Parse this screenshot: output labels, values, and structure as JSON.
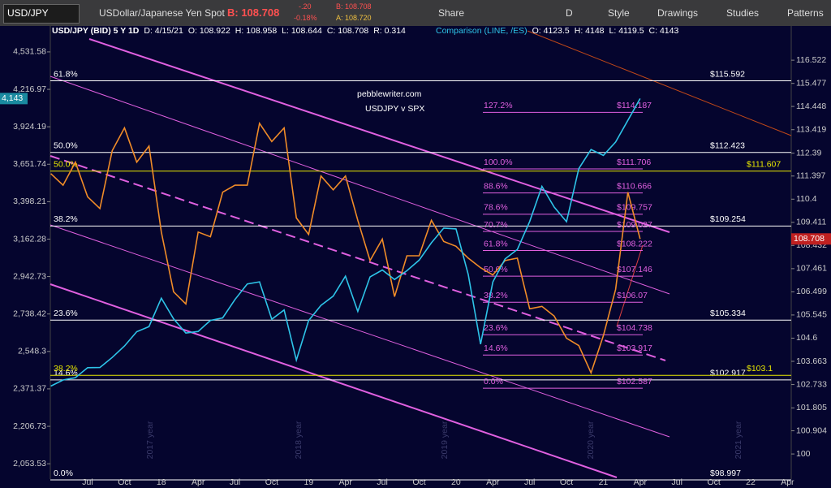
{
  "toolbar": {
    "symbol": "USD/JPY",
    "description": "USDollar/Japanese Yen Spot",
    "bid": "B: 108.708",
    "change": "-.20",
    "change_pct": "-0.18%",
    "bid_small": "B: 108.708",
    "ask_small": "A: 108.720",
    "buttons": [
      "Share",
      "D",
      "Style",
      "Drawings",
      "Studies",
      "Patterns"
    ]
  },
  "chart_data": {
    "type": "line",
    "info": [
      "USD/JPY (BID) 5 Y 1D",
      "D: 4/15/21",
      "O: 108.922",
      "H: 108.958",
      "L: 108.644",
      "C: 108.708",
      "R: 0.314"
    ],
    "comparison_info": [
      "Comparison (LINE, /ES)",
      "O: 4123.5",
      "H: 4148",
      "L: 4119.5",
      "C: 4143"
    ],
    "annotations": [
      "pebblewriter.com",
      "USDJPY v SPX"
    ],
    "watermarks": [
      "2017 year",
      "2018 year",
      "2019 year",
      "2020 year",
      "2021 year"
    ],
    "categories": [
      null,
      null,
      null,
      "Jul",
      null,
      null,
      "Oct",
      null,
      null,
      "18",
      null,
      null,
      "Apr",
      null,
      null,
      "Jul",
      null,
      null,
      "Oct",
      null,
      null,
      "19",
      null,
      null,
      "Apr",
      null,
      null,
      "Jul",
      null,
      null,
      "Oct",
      null,
      null,
      "20",
      null,
      null,
      "Apr",
      null,
      null,
      "Jul",
      null,
      null,
      "Oct",
      null,
      null,
      "21",
      null,
      null,
      "Apr",
      null,
      null,
      "Jul",
      null,
      null,
      "Oct",
      null,
      null,
      "22",
      null,
      null,
      "Apr"
    ],
    "series": [
      {
        "name": "USD/JPY",
        "axis": "y2",
        "color": "#f08c28",
        "last_value_label": "108.708",
        "values": [
          111.5,
          111,
          112,
          110.5,
          110,
          112.5,
          113.5,
          112,
          112.7,
          109,
          106.5,
          106,
          109,
          108.8,
          110.7,
          111,
          111,
          113.7,
          112.9,
          113.5,
          109.6,
          108.9,
          111.4,
          110.8,
          111.4,
          109.5,
          107.8,
          108.7,
          106.3,
          108,
          108,
          109.5,
          108.6,
          108.4,
          107.9,
          107.5,
          107.2,
          107.8,
          107.9,
          105.8,
          105.9,
          105.5,
          104.6,
          104.3,
          103.2,
          104.7,
          106.6,
          110.7,
          108.708,
          null,
          null,
          null,
          null,
          null,
          null,
          null,
          null,
          null,
          null,
          null,
          null
        ]
      },
      {
        "name": "/ES",
        "color": "#2ec4e8",
        "last_value_label": "4,143",
        "values": [
          2384,
          2412,
          2423,
          2470,
          2471,
          2519,
          2575,
          2647,
          2673,
          2823,
          2713,
          2640,
          2648,
          2705,
          2718,
          2816,
          2901,
          2913,
          2711,
          2760,
          2506,
          2704,
          2784,
          2834,
          2945,
          2752,
          2941,
          2980,
          2926,
          2976,
          3037,
          3140,
          3230,
          3225,
          2954,
          2584,
          2912,
          3044,
          3100,
          3271,
          3500,
          3363,
          3270,
          3621,
          3756,
          3714,
          3811,
          3973,
          4143,
          null,
          null,
          null,
          null,
          null,
          null,
          null,
          null,
          null,
          null,
          null,
          null
        ]
      }
    ],
    "log_scale": true,
    "ylim": [
      1994,
      4763
    ],
    "yticks": [
      {
        "value": 4531.58,
        "label": "4,531.58"
      },
      {
        "value": 4216.97,
        "label": "4,216.97"
      },
      {
        "value": 3924.19,
        "label": "3,924.19"
      },
      {
        "value": 3651.74,
        "label": "3,651.74"
      },
      {
        "value": 3398.21,
        "label": "3,398.21"
      },
      {
        "value": 3162.28,
        "label": "3,162.28"
      },
      {
        "value": 2942.73,
        "label": "2,942.73"
      },
      {
        "value": 2738.42,
        "label": "2,738.42"
      },
      {
        "value": 2548.3,
        "label": "2,548.3"
      },
      {
        "value": 2371.37,
        "label": "2,371.37"
      },
      {
        "value": 2206.73,
        "label": "2,206.73"
      },
      {
        "value": 2053.53,
        "label": "2,053.53"
      }
    ],
    "y2lim": [
      99.03,
      118.08
    ],
    "y2ticks": [
      116.522,
      115.477,
      114.448,
      113.419,
      112.39,
      111.397,
      110.4,
      109.411,
      108.432,
      107.461,
      106.499,
      105.545,
      104.6,
      103.663,
      102.733,
      101.805,
      100.904,
      100
    ],
    "outer_levels": [
      {
        "label": "61.8%",
        "value": 115.592,
        "value_label": "$115.592"
      },
      {
        "label": "50.0%",
        "value": 112.423,
        "value_label": "$112.423"
      },
      {
        "label": "38.2%",
        "value": 109.254,
        "value_label": "$109.254"
      },
      {
        "label": "23.6%",
        "value": 105.334,
        "value_label": "$105.334"
      },
      {
        "label": "14.6%",
        "value": 102.917,
        "value_label": "$102.917"
      },
      {
        "label": "0.0%",
        "value": 98.997,
        "value_label": "$98.997"
      }
    ],
    "yellow_levels": [
      {
        "label": "50.0%",
        "value": 111.607,
        "value_label": "$111.607"
      },
      {
        "label": "38.2%",
        "value": 103.1,
        "value_label": "$103.1"
      }
    ],
    "inner_levels": [
      {
        "label": "127.2%",
        "value": 114.187,
        "value_label": "$114.187"
      },
      {
        "label": "100.0%",
        "value": 111.706,
        "value_label": "$111.706"
      },
      {
        "label": "88.6%",
        "value": 110.666,
        "value_label": "$110.666"
      },
      {
        "label": "78.6%",
        "value": 109.757,
        "value_label": "$109.757"
      },
      {
        "label": "70.7%",
        "value": 109.027,
        "value_label": "$109.027"
      },
      {
        "label": "61.8%",
        "value": 108.222,
        "value_label": "$108.222"
      },
      {
        "label": "50.0%",
        "value": 107.146,
        "value_label": "$107.146"
      },
      {
        "label": "38.2%",
        "value": 106.07,
        "value_label": "$106.07"
      },
      {
        "label": "23.6%",
        "value": 104.738,
        "value_label": "$104.738"
      },
      {
        "label": "14.6%",
        "value": 103.917,
        "value_label": "$103.917"
      },
      {
        "label": "0.0%",
        "value": 102.587,
        "value_label": "$102.587"
      }
    ]
  }
}
